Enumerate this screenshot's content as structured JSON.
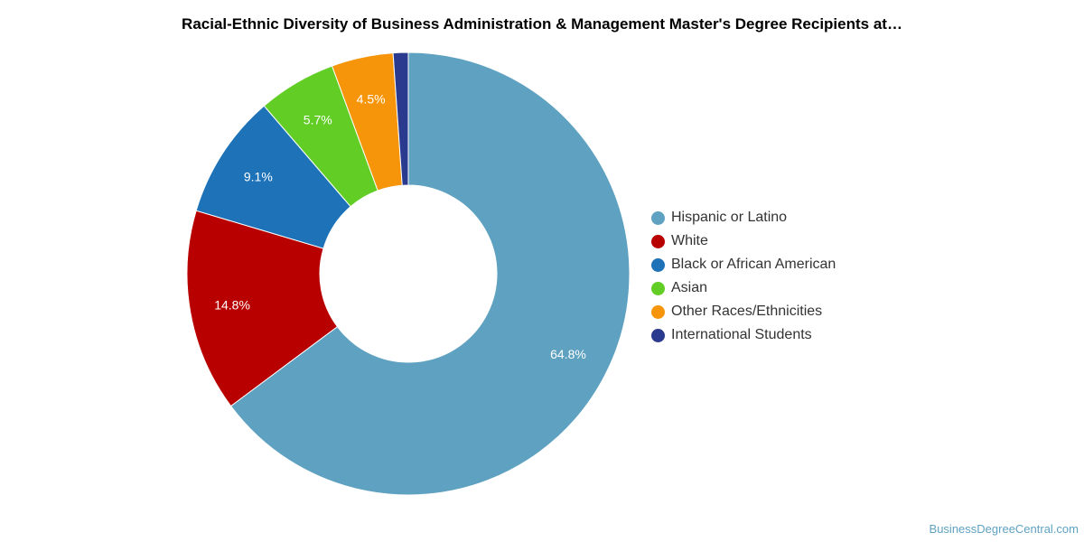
{
  "title": "Racial-Ethnic Diversity of Business Administration & Management Master's Degree Recipients at…",
  "watermark": "BusinessDegreeCentral.com",
  "chart_data": {
    "type": "pie",
    "style": "donut",
    "title": "Racial-Ethnic Diversity of Business Administration & Management Master's Degree Recipients at…",
    "legend_position": "right",
    "categories": [
      "Hispanic or Latino",
      "White",
      "Black or African American",
      "Asian",
      "Other Races/Ethnicities",
      "International Students"
    ],
    "values": [
      64.8,
      14.8,
      9.1,
      5.7,
      4.5,
      1.1
    ],
    "labels": [
      "64.8%",
      "14.8%",
      "9.1%",
      "5.7%",
      "4.5%",
      ""
    ],
    "colors": [
      "#5ea1c0",
      "#b90000",
      "#1d72b8",
      "#62ce25",
      "#f7950a",
      "#2a3a8e"
    ]
  },
  "legend": [
    {
      "label": "Hispanic or Latino",
      "color": "#5ea1c0"
    },
    {
      "label": "White",
      "color": "#b90000"
    },
    {
      "label": "Black or African American",
      "color": "#1d72b8"
    },
    {
      "label": "Asian",
      "color": "#62ce25"
    },
    {
      "label": "Other Races/Ethnicities",
      "color": "#f7950a"
    },
    {
      "label": "International Students",
      "color": "#2a3a8e"
    }
  ]
}
